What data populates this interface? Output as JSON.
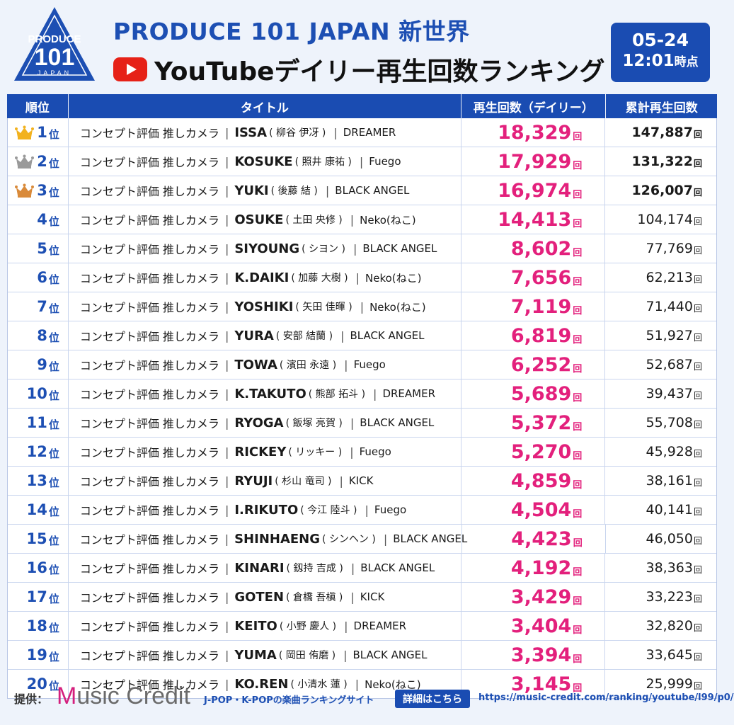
{
  "header": {
    "logo": {
      "line1": "PRODUCE",
      "line2": "101",
      "line3": "JAPAN"
    },
    "title1": "PRODUCE 101 JAPAN 新世界",
    "title2": "YouTubeデイリー再生回数ランキング",
    "date": "05-24",
    "time": "12:01",
    "time_suffix": "時点"
  },
  "table": {
    "columns": [
      "順位",
      "タイトル",
      "再生回数（デイリー）",
      "累計再生回数"
    ],
    "rank_suffix": "位",
    "unit": "回",
    "title_prefix": "コンセプト評価 推しカメラ",
    "separator": "|",
    "rows": [
      {
        "rank": "1",
        "crown": "gold",
        "name": "ISSA",
        "jp": "( 柳谷 伊冴 )",
        "group": "DREAMER",
        "daily": "18,329",
        "total": "147,887"
      },
      {
        "rank": "2",
        "crown": "silver",
        "name": "KOSUKE",
        "jp": "( 照井 康祐 )",
        "group": "Fuego",
        "daily": "17,929",
        "total": "131,322"
      },
      {
        "rank": "3",
        "crown": "bronze",
        "name": "YUKI",
        "jp": "( 後藤 結 )",
        "group": "BLACK ANGEL",
        "daily": "16,974",
        "total": "126,007"
      },
      {
        "rank": "4",
        "crown": "",
        "name": "OSUKE",
        "jp": "( 土田 央修 )",
        "group": "Neko(ねこ)",
        "daily": "14,413",
        "total": "104,174"
      },
      {
        "rank": "5",
        "crown": "",
        "name": "SIYOUNG",
        "jp": "( シヨン )",
        "group": "BLACK ANGEL",
        "daily": "8,602",
        "total": "77,769"
      },
      {
        "rank": "6",
        "crown": "",
        "name": "K.DAIKI",
        "jp": "( 加藤 大樹 )",
        "group": "Neko(ねこ)",
        "daily": "7,656",
        "total": "62,213"
      },
      {
        "rank": "7",
        "crown": "",
        "name": "YOSHIKI",
        "jp": "( 矢田 佳暉 )",
        "group": "Neko(ねこ)",
        "daily": "7,119",
        "total": "71,440"
      },
      {
        "rank": "8",
        "crown": "",
        "name": "YURA",
        "jp": "( 安部 結蘭 )",
        "group": "BLACK ANGEL",
        "daily": "6,819",
        "total": "51,927"
      },
      {
        "rank": "9",
        "crown": "",
        "name": "TOWA",
        "jp": "( 濱田 永遠 )",
        "group": "Fuego",
        "daily": "6,252",
        "total": "52,687"
      },
      {
        "rank": "10",
        "crown": "",
        "name": "K.TAKUTO",
        "jp": "( 熊部 拓斗 )",
        "group": "DREAMER",
        "daily": "5,689",
        "total": "39,437"
      },
      {
        "rank": "11",
        "crown": "",
        "name": "RYOGA",
        "jp": "( 飯塚 亮賀 )",
        "group": "BLACK ANGEL",
        "daily": "5,372",
        "total": "55,708"
      },
      {
        "rank": "12",
        "crown": "",
        "name": "RICKEY",
        "jp": "( リッキー )",
        "group": "Fuego",
        "daily": "5,270",
        "total": "45,928"
      },
      {
        "rank": "13",
        "crown": "",
        "name": "RYUJI",
        "jp": "( 杉山 竜司 )",
        "group": "KICK",
        "daily": "4,859",
        "total": "38,161"
      },
      {
        "rank": "14",
        "crown": "",
        "name": "I.RIKUTO",
        "jp": "( 今江 陸斗 )",
        "group": "Fuego",
        "daily": "4,504",
        "total": "40,141"
      },
      {
        "rank": "15",
        "crown": "",
        "name": "SHINHAENG",
        "jp": "( シンヘン )",
        "group": "BLACK ANGEL",
        "daily": "4,423",
        "total": "46,050"
      },
      {
        "rank": "16",
        "crown": "",
        "name": "KINARI",
        "jp": "( 釼持 吉成 )",
        "group": "BLACK ANGEL",
        "daily": "4,192",
        "total": "38,363"
      },
      {
        "rank": "17",
        "crown": "",
        "name": "GOTEN",
        "jp": "( 倉橋 吾槇 )",
        "group": "KICK",
        "daily": "3,429",
        "total": "33,223"
      },
      {
        "rank": "18",
        "crown": "",
        "name": "KEITO",
        "jp": "( 小野 慶人 )",
        "group": "DREAMER",
        "daily": "3,404",
        "total": "32,820"
      },
      {
        "rank": "19",
        "crown": "",
        "name": "YUMA",
        "jp": "( 岡田 侑磨 )",
        "group": "BLACK ANGEL",
        "daily": "3,394",
        "total": "33,645"
      },
      {
        "rank": "20",
        "crown": "",
        "name": "KO.REN",
        "jp": "( 小清水 蓮 )",
        "group": "Neko(ねこ)",
        "daily": "3,145",
        "total": "25,999"
      }
    ]
  },
  "footer": {
    "provided_by": "提供：",
    "brand_m": "M",
    "brand_rest": "usic Credit",
    "tagline": "J-POP・K-POPの楽曲ランキングサイト",
    "details_button": "詳細はこちら",
    "url": "https://music-credit.com/ranking/youtube/l99/p0/"
  },
  "colors": {
    "primary": "#1a4cb2",
    "accent": "#e3207c",
    "gold": "#f2b21e",
    "silver": "#9a9a9a",
    "bronze": "#d98a3a"
  },
  "icons": [
    "produce101-logo-icon",
    "youtube-icon",
    "crown-icon"
  ]
}
